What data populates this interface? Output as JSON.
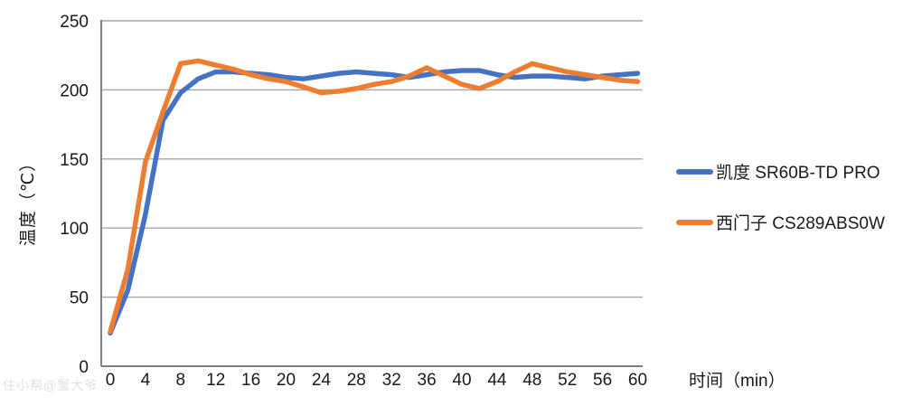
{
  "watermark": "住小帮@蟹大爷",
  "colors": {
    "series_blue": "#4472C4",
    "series_orange": "#ED7D31",
    "gridline": "#A6A6A6",
    "axis_line": "#7F7F7F",
    "tick_text": "#1a1a1a"
  },
  "chart_data": {
    "type": "line",
    "title": "",
    "xlabel": "时间（min）",
    "ylabel": "温度（℃）",
    "xlim": [
      0,
      60
    ],
    "ylim": [
      0,
      250
    ],
    "y_ticks": [
      0,
      50,
      100,
      150,
      200,
      250
    ],
    "x_tick_labels": [
      0,
      4,
      8,
      12,
      16,
      20,
      24,
      28,
      32,
      36,
      40,
      44,
      48,
      52,
      56,
      60
    ],
    "grid": "horizontal",
    "legend_position": "right",
    "x": [
      0,
      2,
      4,
      6,
      8,
      10,
      12,
      14,
      16,
      18,
      20,
      22,
      24,
      26,
      28,
      30,
      32,
      34,
      36,
      38,
      40,
      42,
      44,
      46,
      48,
      50,
      52,
      54,
      56,
      58,
      60
    ],
    "series": [
      {
        "name": "凯度 SR60B-TD PRO",
        "color": "#4472C4",
        "values": [
          24,
          55,
          110,
          178,
          198,
          208,
          213,
          213,
          212,
          211,
          209,
          208,
          210,
          212,
          213,
          212,
          211,
          209,
          211,
          213,
          214,
          214,
          211,
          209,
          210,
          210,
          209,
          208,
          210,
          211,
          212
        ]
      },
      {
        "name": "西门子 CS289ABS0W",
        "color": "#ED7D31",
        "values": [
          25,
          70,
          148,
          184,
          219,
          221,
          218,
          215,
          211,
          208,
          206,
          202,
          198,
          199,
          201,
          204,
          206,
          210,
          216,
          210,
          204,
          201,
          206,
          213,
          219,
          216,
          213,
          211,
          209,
          207,
          206
        ]
      }
    ]
  }
}
